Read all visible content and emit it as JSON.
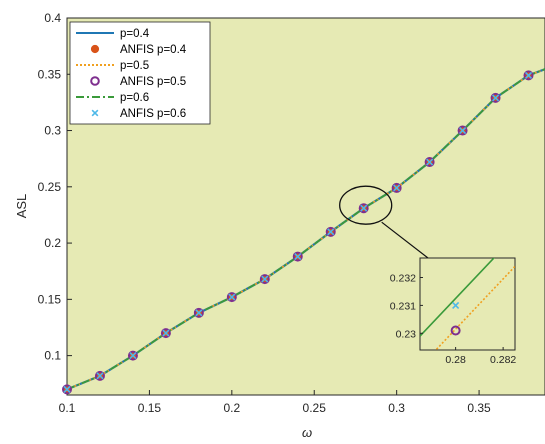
{
  "chart_data": {
    "type": "line",
    "title": "",
    "xlabel": "ω",
    "ylabel": "ASL",
    "xlim": [
      0.1,
      0.39
    ],
    "ylim": [
      0.065,
      0.4
    ],
    "xticks": [
      "0.1",
      "0.15",
      "0.2",
      "0.25",
      "0.3",
      "0.35"
    ],
    "yticks": [
      "0.1",
      "0.15",
      "0.2",
      "0.25",
      "0.3",
      "0.35",
      "0.4"
    ],
    "grid": false,
    "legend_position": "top-left",
    "background_color": "#e6eab4",
    "x": [
      0.1,
      0.12,
      0.14,
      0.16,
      0.18,
      0.2,
      0.22,
      0.24,
      0.26,
      0.28,
      0.3,
      0.32,
      0.34,
      0.36,
      0.38
    ],
    "series": [
      {
        "name": "p=0.4",
        "style": "solid-line",
        "color": "#1f77b4",
        "values": [
          0.07,
          0.082,
          0.1,
          0.12,
          0.138,
          0.152,
          0.168,
          0.188,
          0.21,
          0.231,
          0.249,
          0.272,
          0.3,
          0.329,
          0.349
        ]
      },
      {
        "name": "ANFIS p=0.4",
        "style": "filled-circle",
        "color": "#d95319",
        "values": [
          0.07,
          0.082,
          0.1,
          0.12,
          0.138,
          0.152,
          0.168,
          0.188,
          0.21,
          0.231,
          0.249,
          0.272,
          0.3,
          0.329,
          0.349
        ]
      },
      {
        "name": "p=0.5",
        "style": "dotted-line",
        "color": "#f0a020",
        "values": [
          0.07,
          0.082,
          0.1,
          0.12,
          0.138,
          0.152,
          0.168,
          0.188,
          0.21,
          0.231,
          0.249,
          0.272,
          0.3,
          0.329,
          0.349
        ]
      },
      {
        "name": "ANFIS p=0.5",
        "style": "open-circle",
        "color": "#7e2f8e",
        "values": [
          0.07,
          0.082,
          0.1,
          0.12,
          0.138,
          0.152,
          0.168,
          0.188,
          0.21,
          0.231,
          0.249,
          0.272,
          0.3,
          0.329,
          0.349
        ]
      },
      {
        "name": "p=0.6",
        "style": "dash-dot-line",
        "color": "#3a9a3a",
        "values": [
          0.07,
          0.082,
          0.1,
          0.12,
          0.138,
          0.152,
          0.168,
          0.188,
          0.21,
          0.231,
          0.249,
          0.272,
          0.3,
          0.329,
          0.349
        ]
      },
      {
        "name": "ANFIS p=0.6",
        "style": "cross",
        "color": "#4db8e8",
        "values": [
          0.07,
          0.082,
          0.1,
          0.12,
          0.138,
          0.152,
          0.168,
          0.188,
          0.21,
          0.231,
          0.249,
          0.272,
          0.3,
          0.329,
          0.349
        ]
      }
    ],
    "highlight": {
      "x": 0.28,
      "y": 0.231
    },
    "inset": {
      "xlim": [
        0.2785,
        0.2825
      ],
      "ylim": [
        0.2294,
        0.2327
      ],
      "xticks": [
        "0.28",
        "0.282"
      ],
      "yticks": [
        "0.23",
        "0.231",
        "0.232"
      ],
      "lines": [
        {
          "series": "p=0.6",
          "color": "#3a9a3a",
          "style": "solid-line",
          "x": [
            0.2785,
            0.2825
          ],
          "y": [
            0.2299,
            0.2335
          ]
        },
        {
          "series": "p=0.5",
          "color": "#f0a020",
          "style": "dotted-line",
          "x": [
            0.2785,
            0.2825
          ],
          "y": [
            0.2288,
            0.2324
          ]
        }
      ],
      "markers": [
        {
          "series": "ANFIS p=0.6",
          "style": "cross",
          "color": "#4db8e8",
          "x": 0.28,
          "y": 0.231
        },
        {
          "series": "ANFIS p=0.5",
          "style": "open-circle",
          "color": "#7e2f8e",
          "x": 0.28,
          "y": 0.2301
        }
      ]
    }
  }
}
